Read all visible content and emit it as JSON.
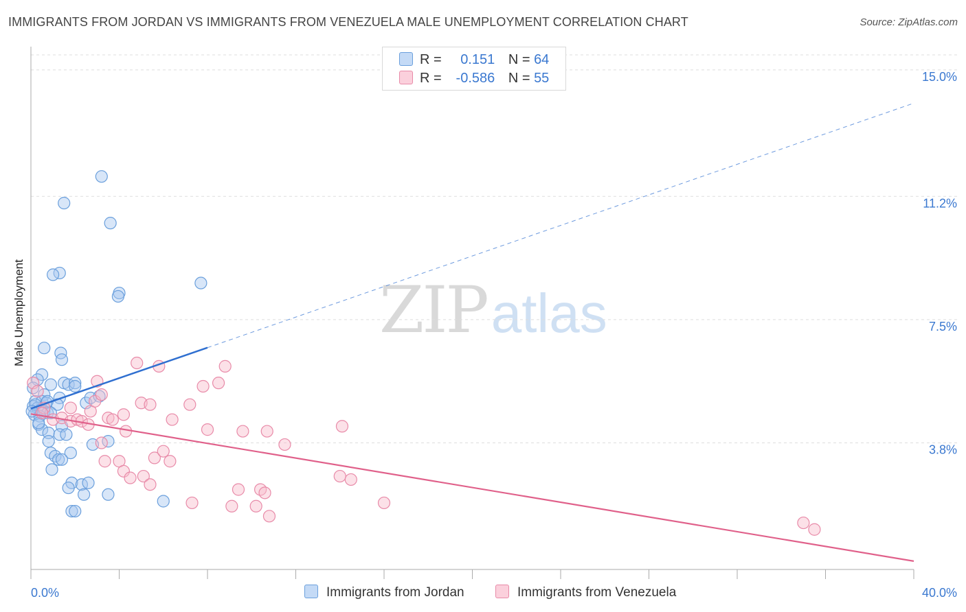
{
  "title": "IMMIGRANTS FROM JORDAN VS IMMIGRANTS FROM VENEZUELA MALE UNEMPLOYMENT CORRELATION CHART",
  "source": "Source: ZipAtlas.com",
  "watermark": {
    "zip": "ZIP",
    "atlas": "atlas"
  },
  "legend": {
    "r_label": "R =",
    "n_label": "N =",
    "jordan": {
      "r": "0.151",
      "n": "64"
    },
    "venezuela": {
      "r": "-0.586",
      "n": "55"
    }
  },
  "bottom_legend": {
    "jordan": "Immigrants from Jordan",
    "venezuela": "Immigrants from Venezuela"
  },
  "colors": {
    "jordan_fill": "#a9c8f0",
    "jordan_stroke": "#6a9fdc",
    "jordan_line": "#2f6fd0",
    "venezuela_fill": "#f8bccd",
    "venezuela_stroke": "#e88aa8",
    "venezuela_line": "#e0608a",
    "tick_label": "#3a78d0",
    "grid": "#dddddd"
  },
  "chart_data": {
    "type": "scatter",
    "title": "IMMIGRANTS FROM JORDAN VS IMMIGRANTS FROM VENEZUELA MALE UNEMPLOYMENT CORRELATION CHART",
    "xlabel": "",
    "ylabel": "Male Unemployment",
    "xlim": [
      0,
      40
    ],
    "ylim": [
      0,
      15.45
    ],
    "x_tick_labels": [
      "0.0%",
      "40.0%"
    ],
    "y_ticks": [
      3.8,
      7.5,
      11.2,
      15.0
    ],
    "y_tick_labels": [
      "3.8%",
      "7.5%",
      "11.2%",
      "15.0%"
    ],
    "grid": true,
    "series": [
      {
        "name": "Immigrants from Jordan",
        "r": 0.151,
        "n": 64,
        "trend": {
          "x0": 0,
          "y0": 4.83,
          "x1": 8,
          "y1": 6.66,
          "x_end": 40,
          "y_end": 14.0
        },
        "points": [
          [
            3.2,
            11.8
          ],
          [
            1.5,
            11.0
          ],
          [
            3.6,
            10.4
          ],
          [
            1.3,
            8.9
          ],
          [
            1.0,
            8.85
          ],
          [
            4.0,
            8.3
          ],
          [
            3.95,
            8.2
          ],
          [
            7.7,
            8.6
          ],
          [
            0.6,
            6.65
          ],
          [
            1.35,
            6.5
          ],
          [
            1.4,
            6.3
          ],
          [
            0.5,
            5.85
          ],
          [
            0.3,
            5.7
          ],
          [
            0.9,
            5.55
          ],
          [
            1.5,
            5.6
          ],
          [
            1.7,
            5.55
          ],
          [
            2.0,
            5.6
          ],
          [
            2.0,
            5.5
          ],
          [
            0.1,
            5.45
          ],
          [
            0.6,
            5.25
          ],
          [
            1.3,
            5.15
          ],
          [
            0.2,
            5.05
          ],
          [
            0.5,
            5.05
          ],
          [
            0.7,
            5.0
          ],
          [
            0.75,
            5.05
          ],
          [
            1.2,
            4.95
          ],
          [
            2.5,
            5.0
          ],
          [
            2.7,
            5.15
          ],
          [
            3.1,
            5.2
          ],
          [
            0.1,
            4.9
          ],
          [
            0.3,
            4.85
          ],
          [
            0.45,
            4.8
          ],
          [
            0.6,
            4.75
          ],
          [
            0.75,
            4.7
          ],
          [
            0.15,
            4.65
          ],
          [
            0.4,
            4.6
          ],
          [
            0.9,
            4.7
          ],
          [
            0.35,
            4.35
          ],
          [
            1.4,
            4.3
          ],
          [
            0.5,
            4.2
          ],
          [
            0.8,
            4.1
          ],
          [
            1.3,
            4.05
          ],
          [
            1.6,
            4.05
          ],
          [
            3.5,
            3.85
          ],
          [
            2.8,
            3.75
          ],
          [
            0.8,
            3.85
          ],
          [
            0.9,
            3.5
          ],
          [
            1.8,
            3.5
          ],
          [
            1.1,
            3.4
          ],
          [
            1.25,
            3.3
          ],
          [
            1.4,
            3.3
          ],
          [
            0.95,
            3.0
          ],
          [
            1.85,
            2.6
          ],
          [
            2.3,
            2.55
          ],
          [
            2.6,
            2.6
          ],
          [
            1.7,
            2.45
          ],
          [
            2.4,
            2.25
          ],
          [
            3.5,
            2.25
          ],
          [
            6.0,
            2.05
          ],
          [
            1.85,
            1.75
          ],
          [
            2.0,
            1.75
          ],
          [
            0.35,
            4.4
          ],
          [
            0.2,
            4.95
          ],
          [
            0.05,
            4.75
          ]
        ]
      },
      {
        "name": "Immigrants from Venezuela",
        "r": -0.586,
        "n": 55,
        "trend": {
          "x0": 0,
          "y0": 4.67,
          "x1": 40,
          "y1": 0.25
        },
        "points": [
          [
            0.1,
            5.6
          ],
          [
            0.3,
            5.35
          ],
          [
            0.6,
            4.85
          ],
          [
            1.0,
            4.5
          ],
          [
            1.4,
            4.55
          ],
          [
            1.8,
            4.45
          ],
          [
            2.1,
            4.5
          ],
          [
            2.3,
            4.45
          ],
          [
            2.6,
            4.35
          ],
          [
            2.7,
            4.75
          ],
          [
            2.9,
            5.05
          ],
          [
            3.0,
            5.65
          ],
          [
            3.2,
            5.25
          ],
          [
            3.5,
            4.55
          ],
          [
            3.7,
            4.5
          ],
          [
            4.2,
            4.65
          ],
          [
            4.3,
            4.15
          ],
          [
            4.8,
            6.2
          ],
          [
            5.0,
            5.0
          ],
          [
            5.4,
            4.95
          ],
          [
            5.8,
            6.1
          ],
          [
            4.0,
            3.25
          ],
          [
            3.2,
            3.8
          ],
          [
            3.35,
            3.25
          ],
          [
            4.2,
            2.95
          ],
          [
            4.5,
            2.75
          ],
          [
            5.1,
            2.8
          ],
          [
            5.4,
            2.55
          ],
          [
            5.6,
            3.35
          ],
          [
            6.0,
            3.55
          ],
          [
            6.3,
            3.25
          ],
          [
            6.4,
            4.5
          ],
          [
            7.2,
            4.95
          ],
          [
            7.8,
            5.5
          ],
          [
            8.0,
            4.2
          ],
          [
            8.5,
            5.6
          ],
          [
            8.8,
            6.1
          ],
          [
            9.6,
            4.15
          ],
          [
            10.7,
            4.15
          ],
          [
            11.5,
            3.75
          ],
          [
            9.4,
            2.4
          ],
          [
            10.4,
            2.4
          ],
          [
            10.6,
            2.3
          ],
          [
            9.1,
            1.9
          ],
          [
            10.2,
            1.9
          ],
          [
            10.8,
            1.6
          ],
          [
            7.3,
            2.0
          ],
          [
            14.1,
            4.3
          ],
          [
            14.0,
            2.8
          ],
          [
            14.5,
            2.7
          ],
          [
            16.0,
            2.0
          ],
          [
            35.0,
            1.4
          ],
          [
            35.5,
            1.2
          ],
          [
            0.5,
            4.7
          ],
          [
            1.8,
            4.85
          ]
        ]
      }
    ]
  }
}
